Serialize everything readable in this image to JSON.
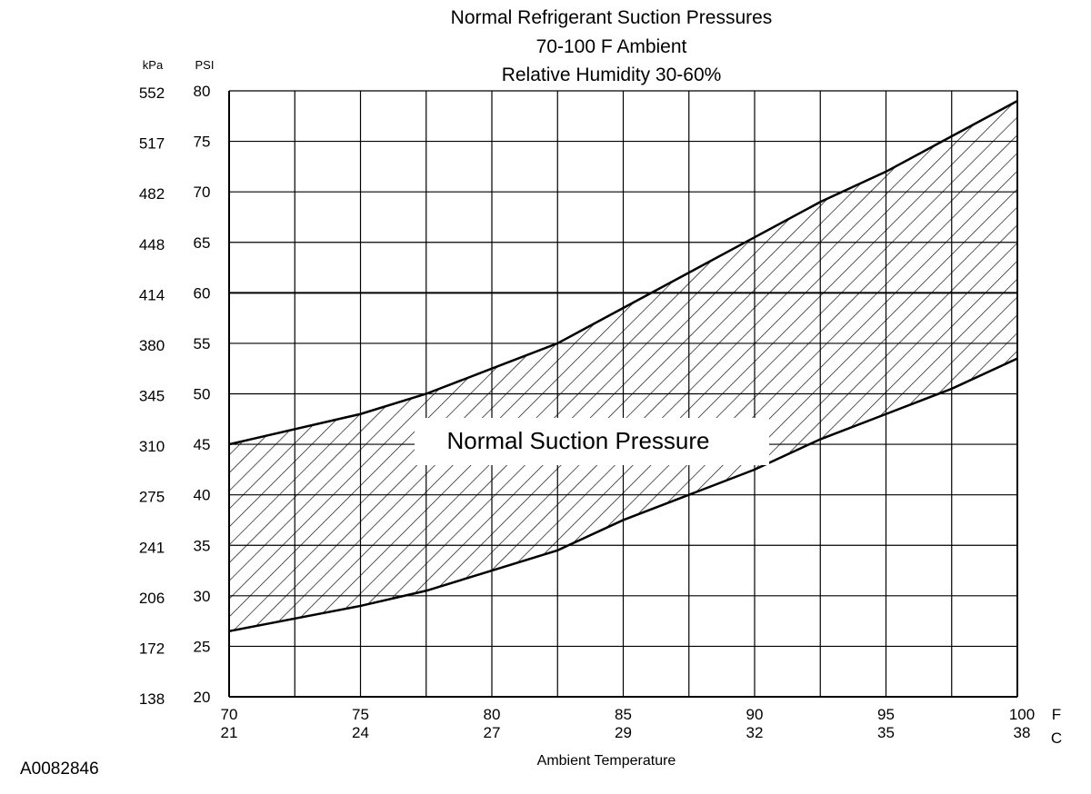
{
  "chart_data": {
    "type": "area",
    "title_lines": [
      "Normal Refrigerant Suction Pressures",
      "70-100 F Ambient",
      "Relative Humidity 30-60%"
    ],
    "xlabel": "Ambient Temperature",
    "x_unit_labels": [
      "F",
      "C"
    ],
    "y_unit_labels": [
      "kPa",
      "PSI"
    ],
    "xlim": [
      70,
      100
    ],
    "ylim": [
      20,
      80
    ],
    "x_ticks_f": [
      "70",
      "75",
      "80",
      "85",
      "90",
      "95",
      "100"
    ],
    "x_ticks_c": [
      "21",
      "24",
      "27",
      "29",
      "32",
      "35",
      "38"
    ],
    "y_ticks_psi": [
      "80",
      "75",
      "70",
      "65",
      "60",
      "55",
      "50",
      "45",
      "40",
      "35",
      "30",
      "25",
      "20"
    ],
    "y_ticks_kpa": [
      "552",
      "517",
      "482",
      "448",
      "414",
      "380",
      "345",
      "310",
      "275",
      "241",
      "206",
      "172",
      "138"
    ],
    "grid": true,
    "band_label": "Normal Suction Pressure",
    "upper_boundary": {
      "x": [
        70,
        75,
        77.5,
        80,
        82.5,
        85,
        87.5,
        90,
        92.5,
        95,
        97.5,
        100
      ],
      "y": [
        45,
        48,
        50,
        52.5,
        55,
        58.5,
        62,
        65.5,
        69,
        72,
        75.5,
        79
      ]
    },
    "lower_boundary": {
      "x": [
        70,
        75,
        77.5,
        80,
        82.5,
        85,
        87.5,
        90,
        92.5,
        95,
        97.5,
        100
      ],
      "y": [
        26.5,
        29,
        30.5,
        32.5,
        34.5,
        37.5,
        40,
        42.5,
        45.5,
        48,
        50.5,
        53.5
      ]
    }
  },
  "figure_code": "A0082846"
}
